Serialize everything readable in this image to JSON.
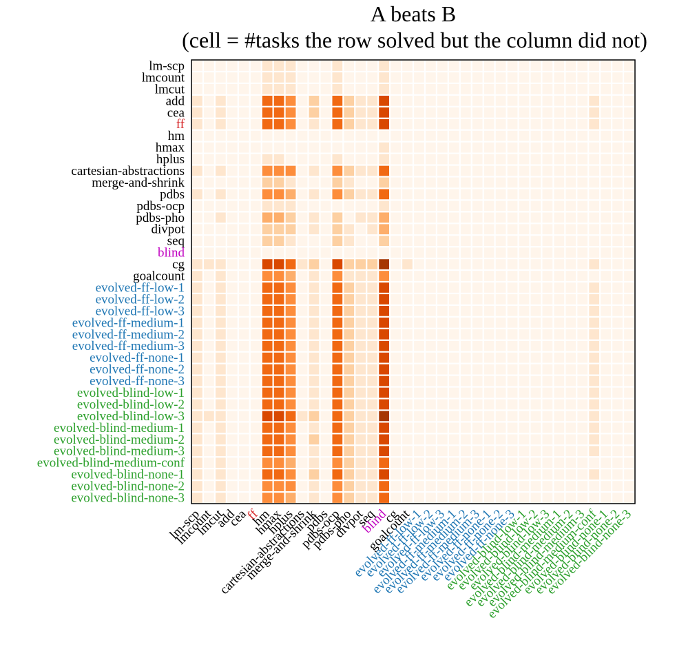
{
  "chart_data": {
    "type": "heatmap",
    "title": "A beats B",
    "subtitle": "(cell = #tasks the row solved but the column did not)",
    "xlabel": "",
    "ylabel": "",
    "labels": [
      "lm-scp",
      "lmcount",
      "lmcut",
      "add",
      "cea",
      "ff",
      "hm",
      "hmax",
      "hplus",
      "cartesian-abstractions",
      "merge-and-shrink",
      "pdbs",
      "pdbs-ocp",
      "pdbs-pho",
      "divpot",
      "seq",
      "blind",
      "cg",
      "goalcount",
      "evolved-ff-low-1",
      "evolved-ff-low-2",
      "evolved-ff-low-3",
      "evolved-ff-medium-1",
      "evolved-ff-medium-2",
      "evolved-ff-medium-3",
      "evolved-ff-none-1",
      "evolved-ff-none-2",
      "evolved-ff-none-3",
      "evolved-blind-low-1",
      "evolved-blind-low-2",
      "evolved-blind-low-3",
      "evolved-blind-medium-1",
      "evolved-blind-medium-2",
      "evolved-blind-medium-3",
      "evolved-blind-medium-conf",
      "evolved-blind-none-1",
      "evolved-blind-none-2",
      "evolved-blind-none-3"
    ],
    "label_groups": [
      "base",
      "base",
      "base",
      "base",
      "base",
      "ff",
      "base",
      "base",
      "base",
      "base",
      "base",
      "base",
      "base",
      "base",
      "base",
      "base",
      "blind",
      "base",
      "base",
      "evolved-ff",
      "evolved-ff",
      "evolved-ff",
      "evolved-ff",
      "evolved-ff",
      "evolved-ff",
      "evolved-ff",
      "evolved-ff",
      "evolved-ff",
      "evolved-blind",
      "evolved-blind",
      "evolved-blind",
      "evolved-blind",
      "evolved-blind",
      "evolved-blind",
      "evolved-blind",
      "evolved-blind",
      "evolved-blind",
      "evolved-blind"
    ],
    "group_colors": {
      "base": "#000000",
      "ff": "#d62728",
      "blind": "#c000c0",
      "evolved-ff": "#1f77b4",
      "evolved-blind": "#2ca02c"
    },
    "colormap": [
      "#fff5eb",
      "#fee6ce",
      "#fdd0a2",
      "#fdae6b",
      "#fd8d3c",
      "#f16913",
      "#d94801",
      "#a63603",
      "#7f2704"
    ],
    "value_range": [
      0,
      1
    ],
    "row_strength": [
      0.08,
      0.06,
      0.04,
      0.34,
      0.32,
      0.3,
      0.02,
      0.03,
      0.06,
      0.28,
      0.1,
      0.26,
      0.04,
      0.16,
      0.14,
      0.1,
      0.02,
      0.4,
      0.24,
      0.3,
      0.3,
      0.3,
      0.3,
      0.3,
      0.3,
      0.3,
      0.3,
      0.3,
      0.3,
      0.3,
      0.36,
      0.3,
      0.34,
      0.3,
      0.26,
      0.34,
      0.28,
      0.26
    ],
    "column_weakness": [
      0.3,
      0.18,
      0.42,
      0.15,
      0.1,
      0.06,
      2.0,
      2.0,
      1.6,
      0.18,
      0.62,
      0.1,
      1.9,
      0.75,
      0.5,
      0.5,
      2.3,
      0.1,
      0.16,
      0.12,
      0.1,
      0.1,
      0.1,
      0.1,
      0.12,
      0.1,
      0.1,
      0.1,
      0.1,
      0.1,
      0.1,
      0.12,
      0.1,
      0.1,
      0.22,
      0.1,
      0.14,
      0.12
    ]
  }
}
